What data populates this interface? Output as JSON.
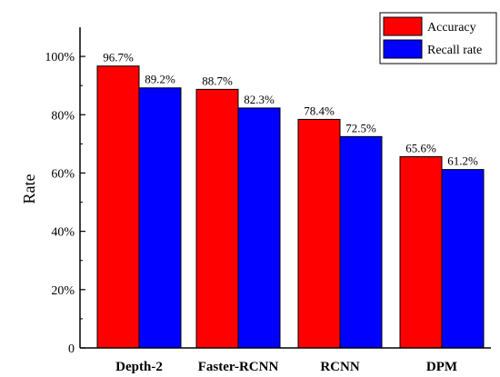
{
  "chart_data": {
    "type": "bar",
    "categories": [
      "Depth-2",
      "Faster-RCNN",
      "RCNN",
      "DPM"
    ],
    "series": [
      {
        "name": "Accuracy",
        "values": [
          96.7,
          88.7,
          78.4,
          65.6
        ],
        "color": "#ff0000",
        "labels": [
          "96.7%",
          "88.7%",
          "78.4%",
          "65.6%"
        ]
      },
      {
        "name": "Recall rate",
        "values": [
          89.2,
          82.3,
          72.5,
          61.2
        ],
        "color": "#0000ff",
        "labels": [
          "89.2%",
          "82.3%",
          "72.5%",
          "61.2%"
        ]
      }
    ],
    "ylabel": "Rate",
    "xlabel": "",
    "ylim": [
      0,
      110
    ],
    "yticks": [
      0,
      20,
      40,
      60,
      80,
      100
    ],
    "ytick_labels": [
      "0",
      "20%",
      "40%",
      "60%",
      "80%",
      "100%"
    ],
    "grid": false,
    "legend_position": "top-right"
  }
}
